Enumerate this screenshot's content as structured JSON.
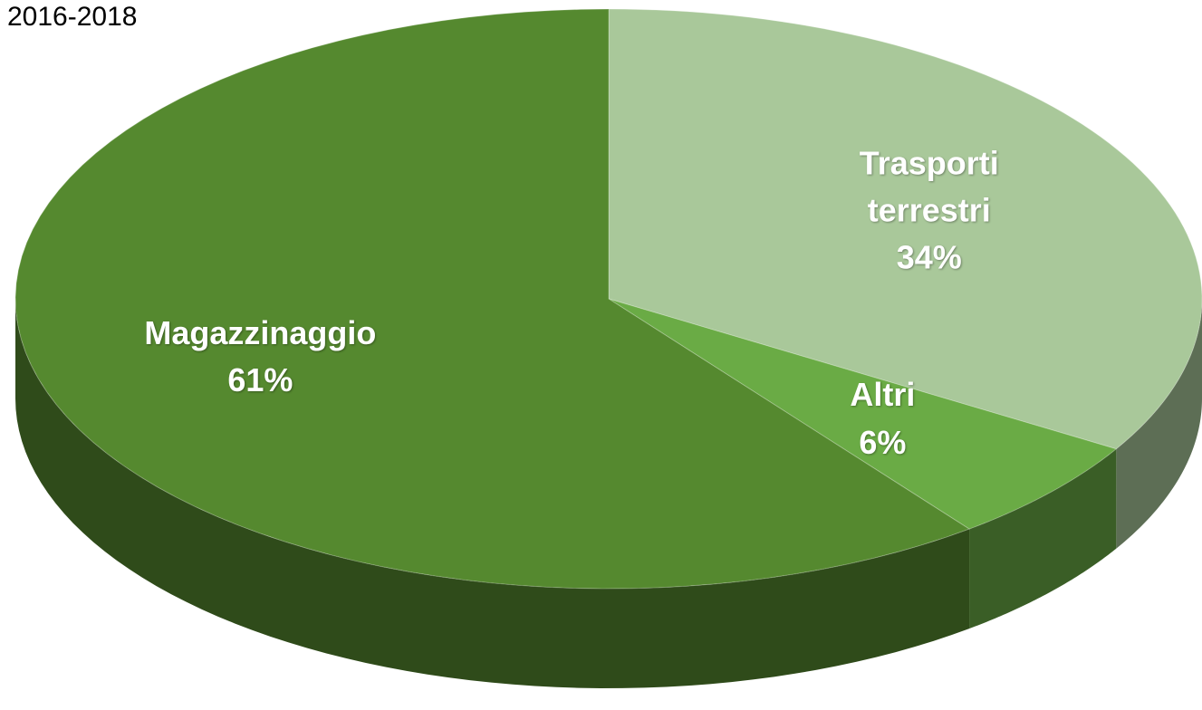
{
  "chart_data": {
    "type": "pie",
    "title": "2016-2018",
    "categories": [
      "Trasporti terrestri",
      "Altri",
      "Magazzinaggio"
    ],
    "values": [
      34,
      6,
      61
    ],
    "value_labels": [
      "34%",
      "6%",
      "61%"
    ],
    "colors": [
      "#a9c89a",
      "#6aab45",
      "#55892f"
    ]
  }
}
